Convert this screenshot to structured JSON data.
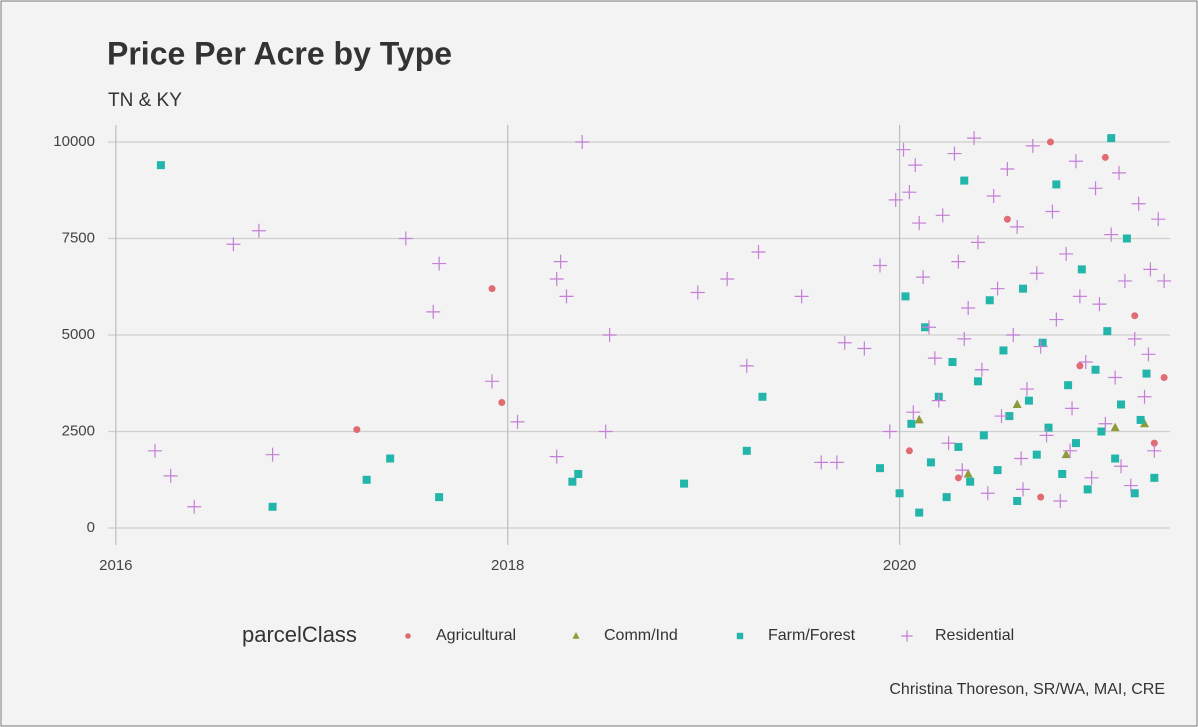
{
  "chart_data": {
    "type": "scatter",
    "title": "Price Per Acre by Type",
    "subtitle": "TN & KY",
    "legend_title": "parcelClass",
    "caption": "Christina Thoreson, SR/WA, MAI, CRE",
    "xlim": [
      2015.96,
      2021.38
    ],
    "xticks": [
      2016,
      2018,
      2020
    ],
    "ylim": [
      -440,
      10440
    ],
    "yticks": [
      0,
      2500,
      5000,
      7500,
      10000
    ],
    "grid": true,
    "legend": "bottom",
    "series": [
      {
        "name": "Agricultural",
        "color": "#e06b73",
        "marker": "circle",
        "x": [
          2017.23,
          2017.92,
          2017.97,
          2020.05,
          2020.3,
          2020.55,
          2020.72,
          2020.77,
          2020.92,
          2021.05,
          2021.2,
          2021.3,
          2021.35
        ],
        "values": [
          2550,
          6200,
          3250,
          2000,
          1300,
          8000,
          800,
          10000,
          4200,
          9600,
          5500,
          2200,
          3900
        ]
      },
      {
        "name": "Comm/Ind",
        "color": "#8f9a3a",
        "marker": "triangle",
        "x": [
          2020.1,
          2020.35,
          2020.6,
          2020.85,
          2021.1,
          2021.25
        ],
        "values": [
          2800,
          1400,
          3200,
          1900,
          2600,
          2700
        ]
      },
      {
        "name": "Farm/Forest",
        "color": "#22b5aa",
        "marker": "square",
        "x": [
          2016.23,
          2016.8,
          2017.28,
          2017.4,
          2017.65,
          2018.33,
          2018.36,
          2018.9,
          2019.22,
          2019.3,
          2019.9,
          2020.0,
          2020.03,
          2020.06,
          2020.1,
          2020.13,
          2020.16,
          2020.2,
          2020.24,
          2020.27,
          2020.3,
          2020.33,
          2020.36,
          2020.4,
          2020.43,
          2020.46,
          2020.5,
          2020.53,
          2020.56,
          2020.6,
          2020.63,
          2020.66,
          2020.7,
          2020.73,
          2020.76,
          2020.8,
          2020.83,
          2020.86,
          2020.9,
          2020.93,
          2020.96,
          2021.0,
          2021.03,
          2021.06,
          2021.1,
          2021.13,
          2021.16,
          2021.2,
          2021.23,
          2021.26,
          2021.08,
          2021.3
        ],
        "values": [
          9400,
          550,
          1250,
          1800,
          800,
          1200,
          1400,
          1150,
          2000,
          3400,
          1550,
          900,
          6000,
          2700,
          400,
          5200,
          1700,
          3400,
          800,
          4300,
          2100,
          9000,
          1200,
          3800,
          2400,
          5900,
          1500,
          4600,
          2900,
          700,
          6200,
          3300,
          1900,
          4800,
          2600,
          8900,
          1400,
          3700,
          2200,
          6700,
          1000,
          4100,
          2500,
          5100,
          1800,
          3200,
          7500,
          900,
          2800,
          4000,
          10100,
          1300
        ]
      },
      {
        "name": "Residential",
        "color": "#c47fd6",
        "marker": "plus",
        "x": [
          2016.2,
          2016.28,
          2016.4,
          2016.6,
          2016.73,
          2016.8,
          2017.48,
          2017.62,
          2017.65,
          2017.92,
          2018.05,
          2018.25,
          2018.25,
          2018.27,
          2018.3,
          2018.38,
          2018.5,
          2018.52,
          2018.97,
          2019.12,
          2019.22,
          2019.28,
          2019.5,
          2019.6,
          2019.68,
          2019.72,
          2019.82,
          2019.9,
          2019.95,
          2019.98,
          2020.02,
          2020.05,
          2020.08,
          2020.1,
          2020.12,
          2020.15,
          2020.18,
          2020.2,
          2020.22,
          2020.25,
          2020.28,
          2020.3,
          2020.32,
          2020.35,
          2020.38,
          2020.4,
          2020.42,
          2020.45,
          2020.48,
          2020.5,
          2020.52,
          2020.55,
          2020.58,
          2020.6,
          2020.62,
          2020.65,
          2020.68,
          2020.7,
          2020.72,
          2020.75,
          2020.78,
          2020.8,
          2020.82,
          2020.85,
          2020.88,
          2020.9,
          2020.92,
          2020.95,
          2020.98,
          2021.0,
          2021.02,
          2021.05,
          2021.08,
          2021.1,
          2021.12,
          2021.15,
          2021.18,
          2021.2,
          2021.22,
          2021.25,
          2021.28,
          2021.3,
          2021.32,
          2021.35,
          2020.07,
          2020.33,
          2020.63,
          2020.87,
          2021.13,
          2021.27
        ],
        "values": [
          2000,
          1350,
          550,
          7350,
          7700,
          1900,
          7500,
          5600,
          6850,
          3800,
          2750,
          6450,
          1850,
          6900,
          6000,
          10000,
          2500,
          5000,
          6100,
          6450,
          4200,
          7150,
          6000,
          1700,
          1700,
          4800,
          4650,
          6800,
          2500,
          8500,
          9800,
          8700,
          9400,
          7900,
          6500,
          5200,
          4400,
          3300,
          8100,
          2200,
          9700,
          6900,
          1500,
          5700,
          10100,
          7400,
          4100,
          900,
          8600,
          6200,
          2900,
          9300,
          5000,
          7800,
          1800,
          3600,
          9900,
          6600,
          4700,
          2400,
          8200,
          5400,
          700,
          7100,
          3100,
          9500,
          6000,
          4300,
          1300,
          8800,
          5800,
          2700,
          7600,
          3900,
          9200,
          6400,
          1100,
          4900,
          8400,
          3400,
          6700,
          2000,
          8000,
          6400,
          3000,
          4900,
          1000,
          2000,
          1600,
          4500
        ]
      }
    ]
  }
}
